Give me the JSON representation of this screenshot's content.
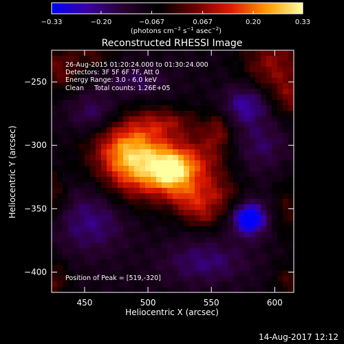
{
  "chart_data": {
    "type": "heatmap",
    "title": "Reconstructed RHESSI Image",
    "xlabel": "Heliocentric X (arcsec)",
    "ylabel": "Heliocentric Y (arcsec)",
    "xlim": [
      424,
      615
    ],
    "ylim": [
      -416,
      -225
    ],
    "x_ticks": [
      450,
      500,
      550,
      600
    ],
    "x_tick_labels": [
      "450",
      "500",
      "550",
      "600"
    ],
    "y_ticks": [
      -250,
      -300,
      -350,
      -400
    ],
    "y_tick_labels": [
      "−250",
      "−300",
      "−350",
      "−400"
    ],
    "colorbar": {
      "range": [
        -0.33,
        0.33
      ],
      "ticks": [
        -0.33,
        -0.2,
        -0.067,
        0.067,
        0.2,
        0.33
      ],
      "tick_labels": [
        "−0.33",
        "−0.20",
        "−0.067",
        "0.067",
        "0.20",
        "0.33"
      ],
      "unit_prefix": "(photons cm",
      "unit_sup1": "−2",
      "unit_mid1": " s",
      "unit_sup2": "−1",
      "unit_mid2": " asec",
      "unit_sup3": "−2",
      "unit_suffix": ")",
      "colors": [
        "#0000ff",
        "#3a00a0",
        "#2a0030",
        "#000000",
        "#6a0000",
        "#e01a00",
        "#ff9a00",
        "#ffffa0"
      ]
    },
    "annotations": [
      "26-Aug-2015 01:20:24.000 to 01:30:24.000",
      "Detectors: 3F 5F 6F 7F, Att 0",
      "Energy Range: 3.0 - 6.0 keV",
      "Clean     Total counts: 1.26E+05"
    ],
    "peak_label": "Position of Peak = [519,-320]",
    "peak": [
      519,
      -320
    ],
    "grid": false,
    "sources": [
      {
        "x": 519,
        "y": -320,
        "sx": 13,
        "sy": 12,
        "amp": 0.3
      },
      {
        "x": 500,
        "y": -318,
        "sx": 24,
        "sy": 20,
        "amp": 0.16
      },
      {
        "x": 482,
        "y": -298,
        "sx": 22,
        "sy": 17,
        "amp": 0.16
      },
      {
        "x": 486,
        "y": -315,
        "sx": 16,
        "sy": 18,
        "amp": 0.13
      },
      {
        "x": 514,
        "y": -282,
        "sx": 16,
        "sy": 8,
        "amp": 0.11
      },
      {
        "x": 545,
        "y": -316,
        "sx": 14,
        "sy": 22,
        "amp": 0.13
      },
      {
        "x": 556,
        "y": -288,
        "sx": 7,
        "sy": 10,
        "amp": 0.1
      },
      {
        "x": 532,
        "y": -343,
        "sx": 11,
        "sy": 8,
        "amp": 0.12
      },
      {
        "x": 543,
        "y": -356,
        "sx": 11,
        "sy": 7,
        "amp": 0.1
      },
      {
        "x": 558,
        "y": -340,
        "sx": 12,
        "sy": 9,
        "amp": 0.09
      },
      {
        "x": 598,
        "y": -236,
        "sx": 17,
        "sy": 17,
        "amp": 0.15
      },
      {
        "x": 613,
        "y": -263,
        "sx": 10,
        "sy": 12,
        "amp": 0.11
      },
      {
        "x": 430,
        "y": -240,
        "sx": 12,
        "sy": 13,
        "amp": 0.12
      },
      {
        "x": 458,
        "y": -228,
        "sx": 11,
        "sy": 7,
        "amp": 0.09
      },
      {
        "x": 425,
        "y": -340,
        "sx": 8,
        "sy": 14,
        "amp": 0.1
      },
      {
        "x": 426,
        "y": -406,
        "sx": 9,
        "sy": 11,
        "amp": 0.1
      },
      {
        "x": 612,
        "y": -406,
        "sx": 9,
        "sy": 9,
        "amp": 0.09
      },
      {
        "x": 610,
        "y": -350,
        "sx": 7,
        "sy": 16,
        "amp": 0.08
      },
      {
        "x": 580,
        "y": -358,
        "sx": 9,
        "sy": 9,
        "amp": -0.3
      },
      {
        "x": 577,
        "y": -268,
        "sx": 12,
        "sy": 11,
        "amp": -0.16
      },
      {
        "x": 458,
        "y": -276,
        "sx": 14,
        "sy": 12,
        "amp": -0.12
      },
      {
        "x": 455,
        "y": -360,
        "sx": 20,
        "sy": 18,
        "amp": -0.12
      },
      {
        "x": 545,
        "y": -392,
        "sx": 24,
        "sy": 12,
        "amp": -0.11
      },
      {
        "x": 590,
        "y": -300,
        "sx": 14,
        "sy": 14,
        "amp": -0.09
      },
      {
        "x": 492,
        "y": -250,
        "sx": 16,
        "sy": 8,
        "amp": -0.09
      }
    ],
    "background_level": -0.085
  },
  "footer": {
    "timestamp": "14-Aug-2017 12:12"
  }
}
